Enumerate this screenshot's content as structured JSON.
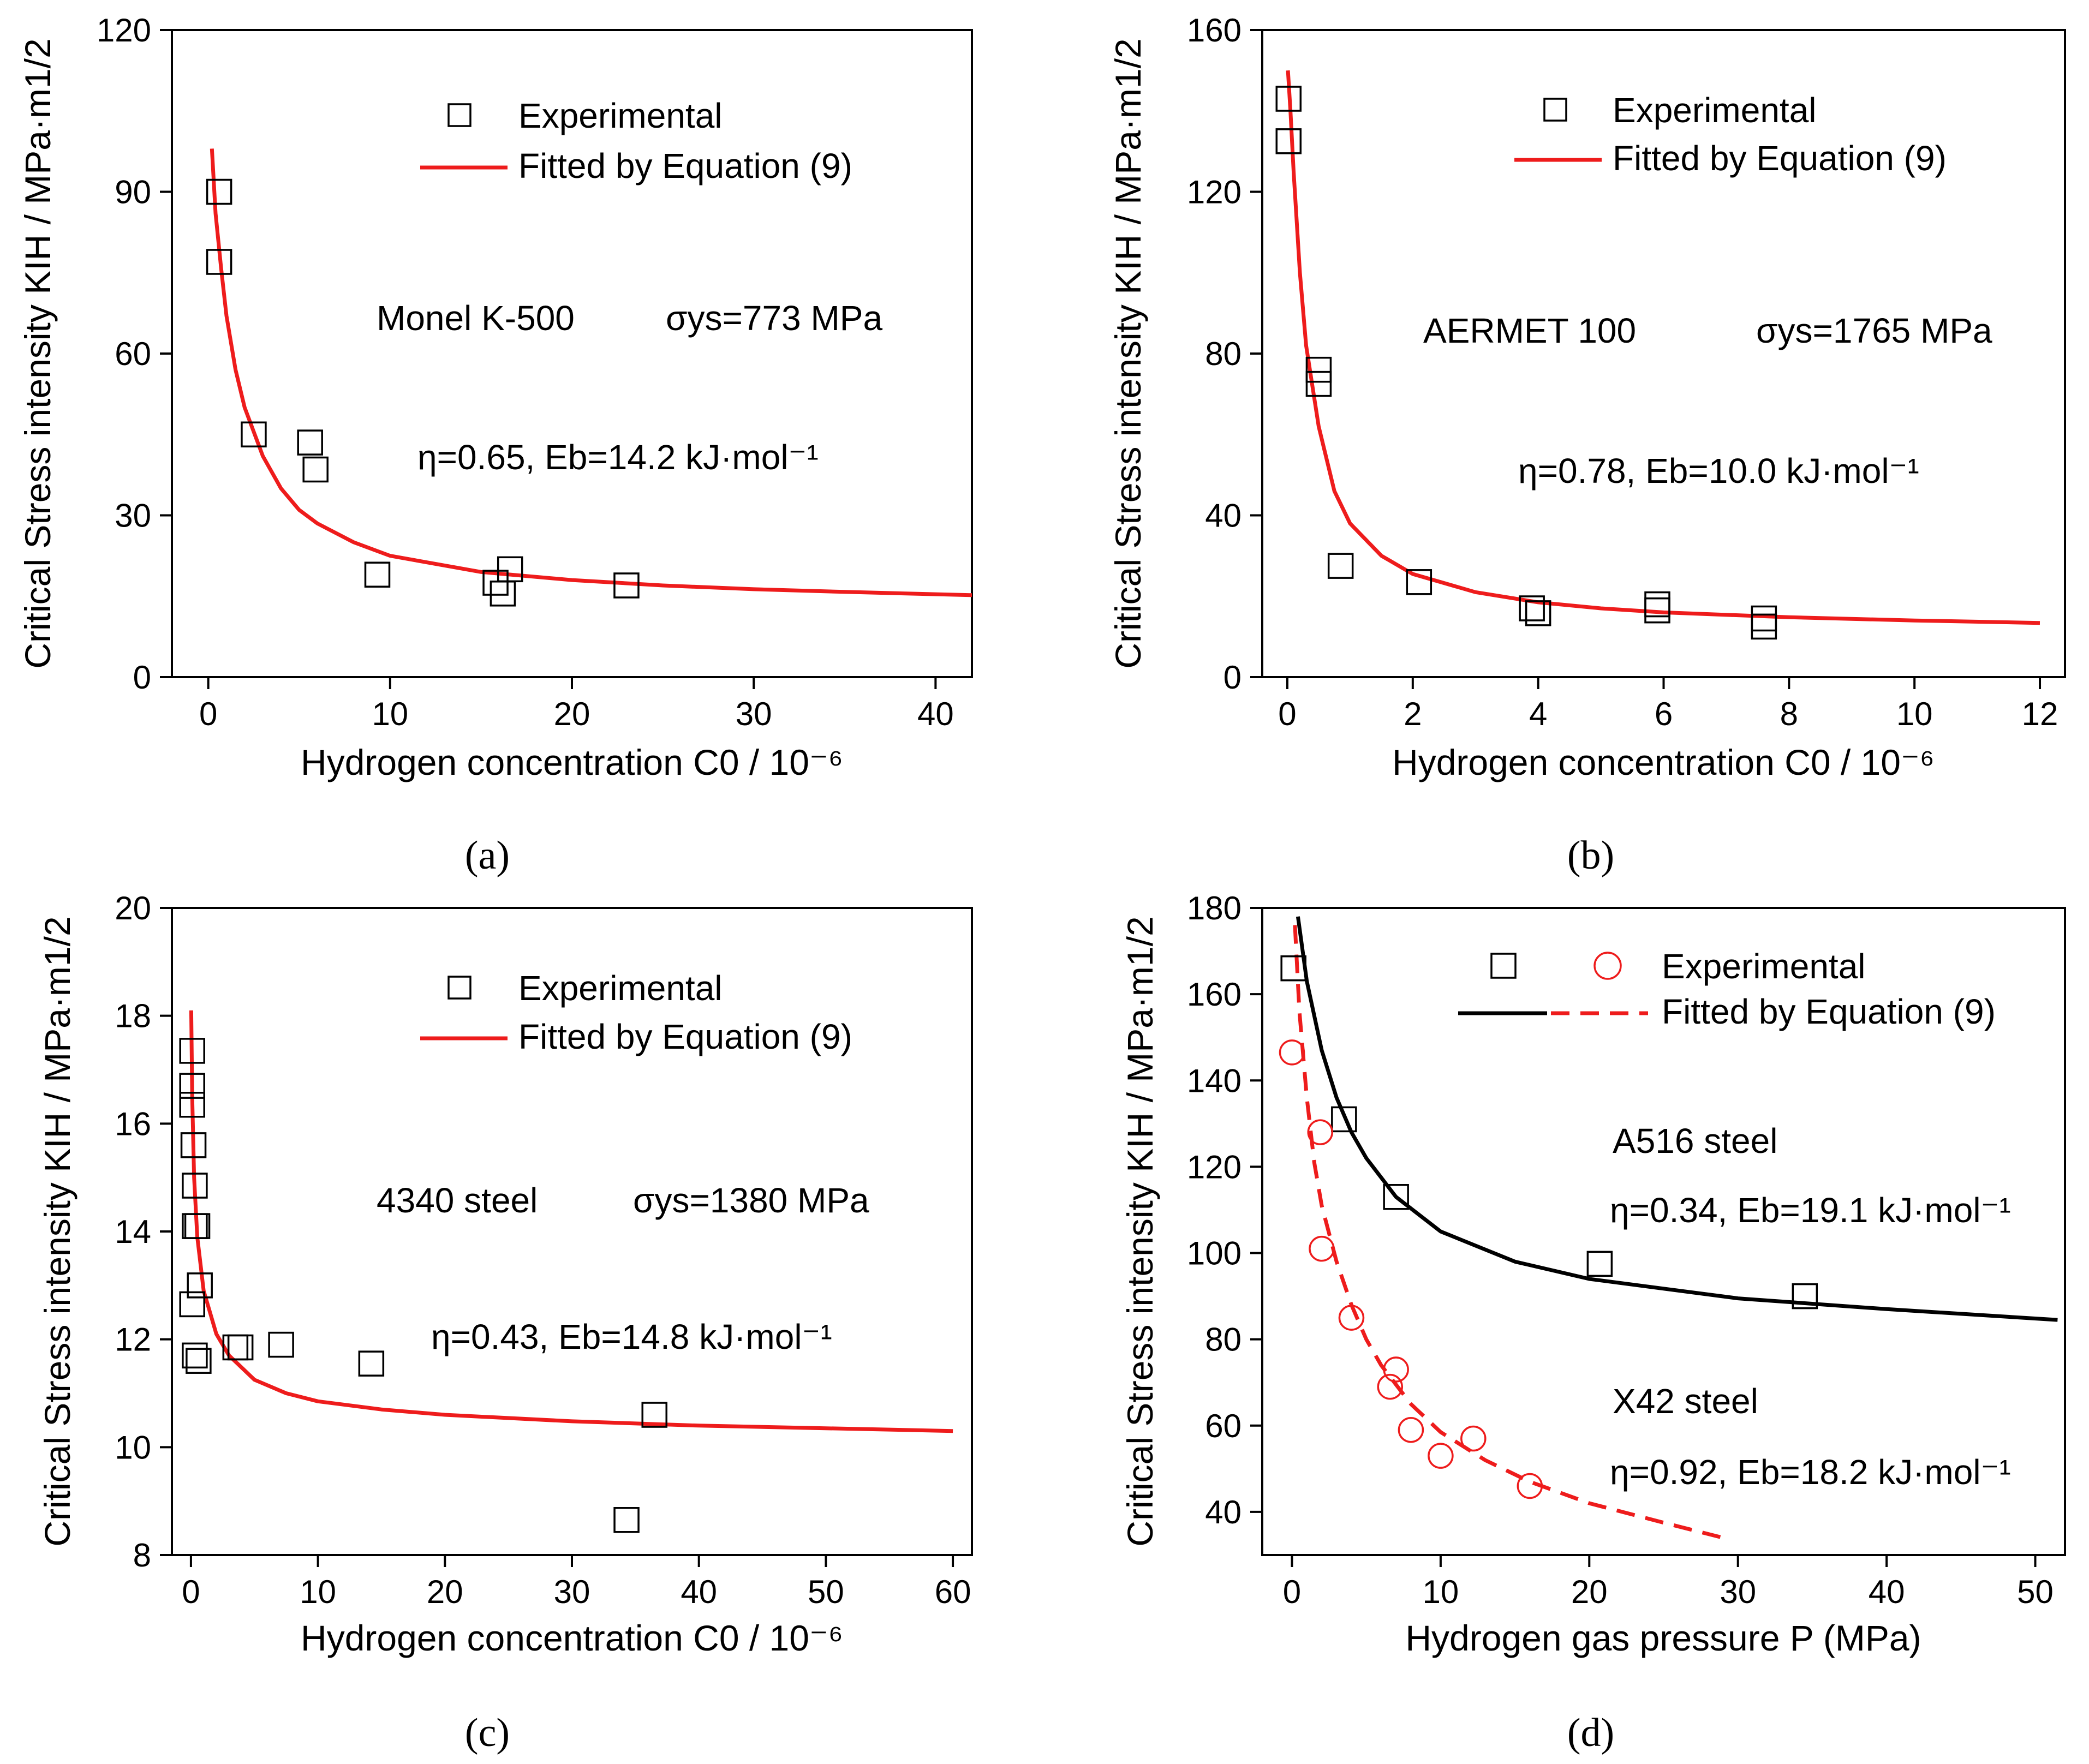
{
  "chart_data": [
    {
      "type": "scatter",
      "panel_label": "(a)",
      "material": "Monel K-500",
      "yield_strength": "σys=773 MPa",
      "fit_params": "η=0.65, Eb=14.2 kJ·mol⁻¹",
      "xlabel": "Hydrogen concentration C0 / 10⁻⁶",
      "ylabel": "Critical Stress intensity KIH / MPa·m1/2",
      "xlim": [
        -2,
        42
      ],
      "ylim": [
        0,
        120
      ],
      "xticks": [
        0,
        10,
        20,
        30,
        40
      ],
      "yticks": [
        0,
        30,
        60,
        90,
        120
      ],
      "legend": {
        "position": "top-right",
        "entries": [
          "Experimental",
          "Fitted by Equation (9)"
        ]
      },
      "series": [
        {
          "name": "Experimental",
          "kind": "square",
          "color": "#000000",
          "points": [
            [
              0.6,
              90
            ],
            [
              0.6,
              77
            ],
            [
              2.5,
              45
            ],
            [
              5.6,
              43.5
            ],
            [
              5.9,
              38.5
            ],
            [
              9.3,
              19
            ],
            [
              15.8,
              17.5
            ],
            [
              16.2,
              15.5
            ],
            [
              16.6,
              20
            ],
            [
              23,
              17
            ]
          ]
        },
        {
          "name": "Fitted by Equation (9)",
          "kind": "line",
          "color": "#ee1c1c",
          "points": [
            [
              0.2,
              98
            ],
            [
              0.4,
              86
            ],
            [
              0.7,
              76
            ],
            [
              1,
              67
            ],
            [
              1.5,
              57
            ],
            [
              2,
              50
            ],
            [
              3,
              41
            ],
            [
              4,
              35
            ],
            [
              5,
              31
            ],
            [
              6,
              28.5
            ],
            [
              8,
              25
            ],
            [
              10,
              22.5
            ],
            [
              15,
              19.5
            ],
            [
              20,
              18
            ],
            [
              25,
              17
            ],
            [
              30,
              16.3
            ],
            [
              35,
              15.8
            ],
            [
              42,
              15.2
            ]
          ]
        }
      ]
    },
    {
      "type": "scatter",
      "panel_label": "(b)",
      "material": "AERMET 100",
      "yield_strength": "σys=1765 MPa",
      "fit_params": "η=0.78, Eb=10.0 kJ·mol⁻¹",
      "xlabel": "Hydrogen concentration C0 / 10⁻⁶",
      "ylabel": "Critical Stress intensity KIH / MPa·m1/2",
      "xlim": [
        -0.4,
        12.4
      ],
      "ylim": [
        0,
        160
      ],
      "xticks": [
        0,
        2,
        4,
        6,
        8,
        10,
        12
      ],
      "yticks": [
        0,
        40,
        80,
        120,
        160
      ],
      "legend": {
        "position": "top-right",
        "entries": [
          "Experimental",
          "Fitted by Equation (9)"
        ]
      },
      "series": [
        {
          "name": "Experimental",
          "kind": "square",
          "color": "#000000",
          "points": [
            [
              0.02,
              143
            ],
            [
              0.02,
              132.5
            ],
            [
              0.5,
              76
            ],
            [
              0.5,
              72.5
            ],
            [
              0.85,
              27.5
            ],
            [
              2.1,
              23.5
            ],
            [
              3.9,
              17
            ],
            [
              4,
              15.8
            ],
            [
              5.9,
              18
            ],
            [
              5.9,
              16.5
            ],
            [
              7.6,
              14.5
            ],
            [
              7.6,
              12.5
            ]
          ]
        },
        {
          "name": "Fitted by Equation (9)",
          "kind": "line",
          "color": "#ee1c1c",
          "points": [
            [
              0.01,
              150
            ],
            [
              0.05,
              140
            ],
            [
              0.1,
              125
            ],
            [
              0.2,
              100
            ],
            [
              0.3,
              82
            ],
            [
              0.5,
              62
            ],
            [
              0.75,
              46
            ],
            [
              1,
              38
            ],
            [
              1.5,
              30
            ],
            [
              2,
              25.5
            ],
            [
              3,
              21
            ],
            [
              4,
              18.5
            ],
            [
              5,
              17
            ],
            [
              6,
              16
            ],
            [
              8,
              14.8
            ],
            [
              10,
              14
            ],
            [
              12,
              13.4
            ]
          ]
        }
      ]
    },
    {
      "type": "scatter",
      "panel_label": "(c)",
      "material": "4340 steel",
      "yield_strength": "σys=1380 MPa",
      "fit_params": "η=0.43, Eb=14.8 kJ·mol⁻¹",
      "xlabel": "Hydrogen concentration C0 / 10⁻⁶",
      "ylabel": "Critical Stress intensity KIH / MPa·m1/2",
      "xlim": [
        -1.5,
        61.5
      ],
      "ylim": [
        8,
        20
      ],
      "xticks": [
        0,
        10,
        20,
        30,
        40,
        50,
        60
      ],
      "yticks": [
        8,
        10,
        12,
        14,
        16,
        18,
        20
      ],
      "legend": {
        "position": "top-right",
        "entries": [
          "Experimental",
          "Fitted by Equation (9)"
        ]
      },
      "series": [
        {
          "name": "Experimental",
          "kind": "square",
          "color": "#000000",
          "points": [
            [
              0.1,
              17.35
            ],
            [
              0.1,
              16.7
            ],
            [
              0.1,
              16.35
            ],
            [
              0.2,
              15.6
            ],
            [
              0.3,
              14.85
            ],
            [
              0.3,
              14.1
            ],
            [
              0.5,
              14.1
            ],
            [
              0.7,
              13
            ],
            [
              0.1,
              12.65
            ],
            [
              0.3,
              11.7
            ],
            [
              0.6,
              11.6
            ],
            [
              3.5,
              11.85
            ],
            [
              3.9,
              11.85
            ],
            [
              7.1,
              11.9
            ],
            [
              14.2,
              11.55
            ],
            [
              34.3,
              8.65
            ],
            [
              36.5,
              10.6
            ]
          ]
        },
        {
          "name": "Fitted by Equation (9)",
          "kind": "line",
          "color": "#ee1c1c",
          "points": [
            [
              0.02,
              18.1
            ],
            [
              0.1,
              16.5
            ],
            [
              0.25,
              15
            ],
            [
              0.5,
              13.9
            ],
            [
              1,
              12.9
            ],
            [
              2,
              12.1
            ],
            [
              3,
              11.7
            ],
            [
              5,
              11.25
            ],
            [
              7.5,
              11
            ],
            [
              10,
              10.85
            ],
            [
              15,
              10.7
            ],
            [
              20,
              10.6
            ],
            [
              30,
              10.48
            ],
            [
              40,
              10.4
            ],
            [
              50,
              10.35
            ],
            [
              60,
              10.3
            ]
          ]
        }
      ]
    },
    {
      "type": "scatter",
      "panel_label": "(d)",
      "material_1": "A516 steel",
      "fit_params_1": "η=0.34, Eb=19.1 kJ·mol⁻¹",
      "material_2": "X42 steel",
      "fit_params_2": "η=0.92, Eb=18.2 kJ·mol⁻¹",
      "xlabel": "Hydrogen gas pressure P (MPa)",
      "ylabel": "Critical Stress intensity KIH / MPa·m1/2",
      "xlim": [
        -2,
        52
      ],
      "ylim": [
        30,
        180
      ],
      "xticks": [
        0,
        10,
        20,
        30,
        40,
        50
      ],
      "yticks": [
        40,
        60,
        80,
        100,
        120,
        140,
        160,
        180
      ],
      "legend": {
        "position": "top-right",
        "entries": [
          "Experimental",
          "Fitted by Equation (9)"
        ]
      },
      "series": [
        {
          "name": "A516 steel experimental",
          "kind": "square",
          "color": "#000000",
          "points": [
            [
              0.1,
              166
            ],
            [
              3.5,
              131
            ],
            [
              7,
              113
            ],
            [
              20.7,
              97.5
            ],
            [
              34.5,
              90
            ]
          ]
        },
        {
          "name": "A516 steel fitted",
          "kind": "line",
          "color": "#000000",
          "points": [
            [
              0.4,
              178
            ],
            [
              1,
              163
            ],
            [
              2,
              147
            ],
            [
              3,
              136
            ],
            [
              4,
              128
            ],
            [
              5,
              122
            ],
            [
              7,
              113
            ],
            [
              10,
              105
            ],
            [
              15,
              98
            ],
            [
              20,
              94
            ],
            [
              30,
              89.5
            ],
            [
              40,
              87
            ],
            [
              51.5,
              84.5
            ]
          ]
        },
        {
          "name": "X42 steel experimental",
          "kind": "circle",
          "color": "#ee1c1c",
          "points": [
            [
              0,
              146.5
            ],
            [
              1.9,
              128
            ],
            [
              2,
              101
            ],
            [
              4,
              85
            ],
            [
              6.6,
              69
            ],
            [
              7,
              73
            ],
            [
              8,
              59
            ],
            [
              10,
              53
            ],
            [
              12.2,
              57
            ],
            [
              16,
              46
            ]
          ]
        },
        {
          "name": "X42 steel fitted",
          "kind": "dashed",
          "color": "#ee1c1c",
          "points": [
            [
              0.2,
              176
            ],
            [
              0.5,
              156
            ],
            [
              1,
              136
            ],
            [
              1.5,
              121
            ],
            [
              2,
              111
            ],
            [
              3,
              98
            ],
            [
              4,
              88
            ],
            [
              5,
              80
            ],
            [
              6,
              74
            ],
            [
              8,
              65
            ],
            [
              10,
              58.5
            ],
            [
              13,
              52
            ],
            [
              16,
              47
            ],
            [
              20,
              42
            ],
            [
              25,
              37.5
            ],
            [
              29,
              34
            ]
          ]
        }
      ]
    }
  ]
}
